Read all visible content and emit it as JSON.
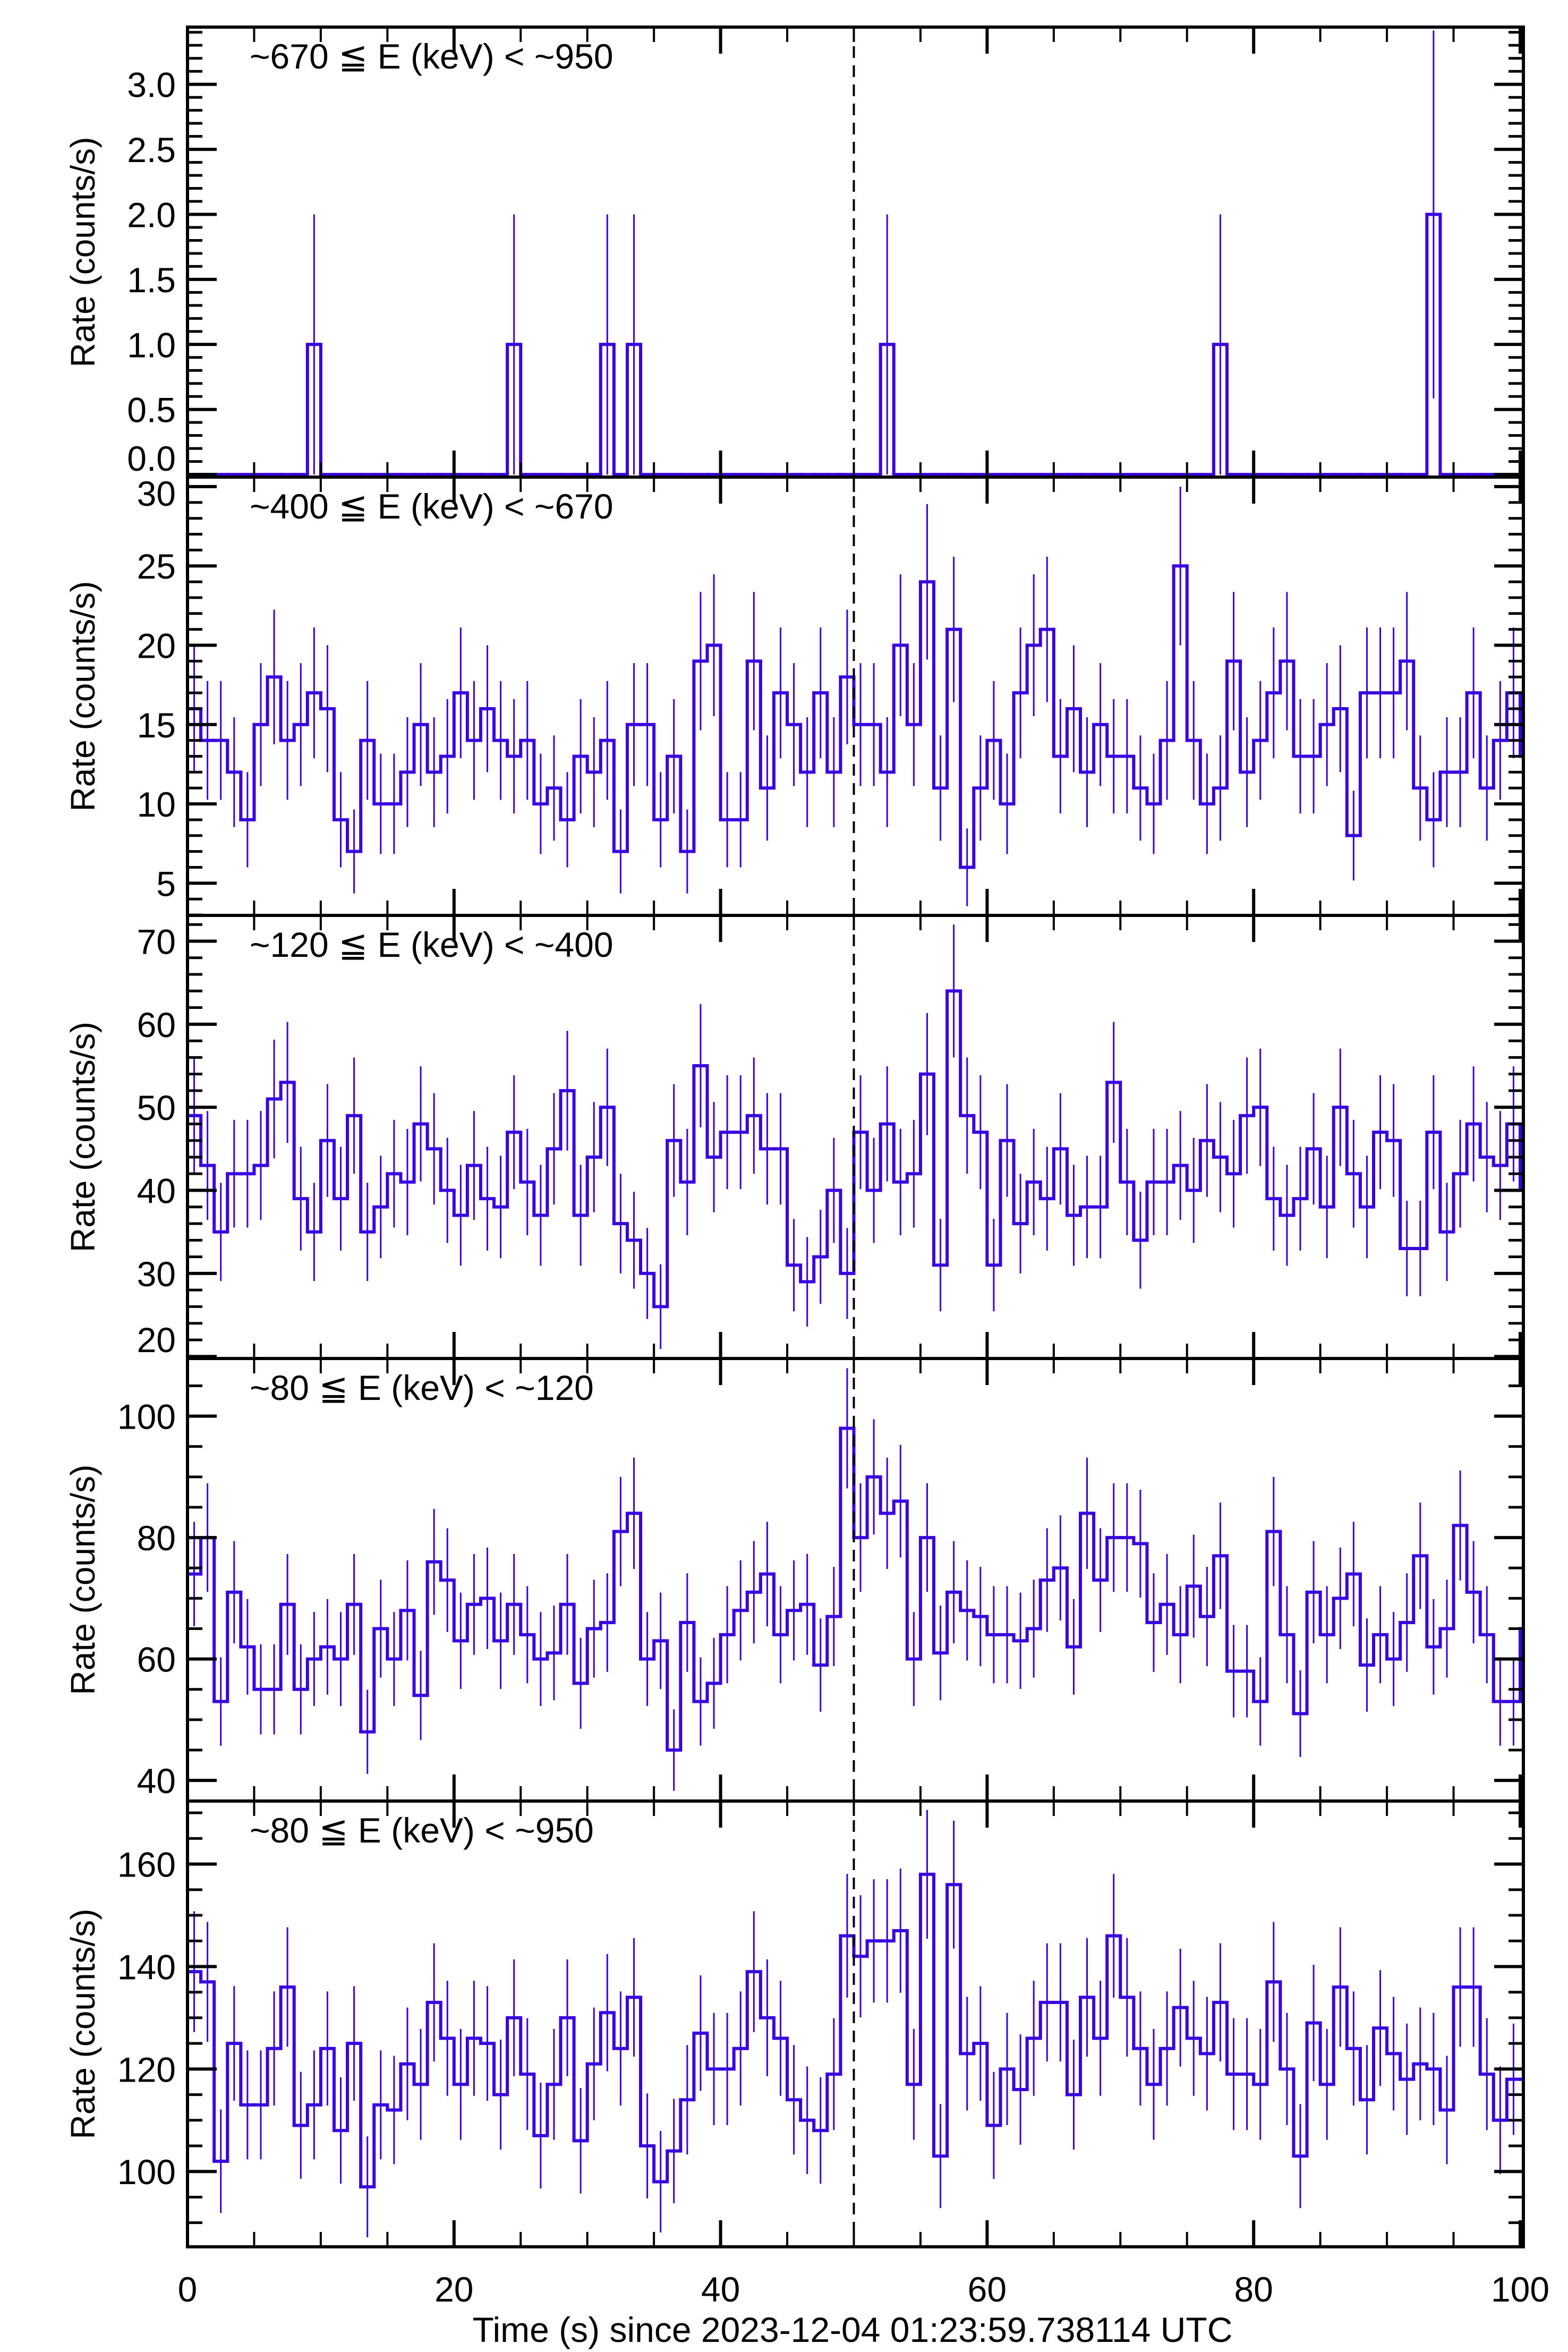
{
  "chart_data": {
    "type": "line",
    "style": "step histogram with error bars",
    "line_color": "#3a00e0",
    "axis_color": "#000000",
    "xlabel": "Time (s) since 2023-12-04 01:23:59.738114 UTC",
    "xlim": [
      0,
      100.24
    ],
    "xticks": [
      0,
      20,
      40,
      60,
      80,
      100
    ],
    "xticklabels": [
      "0",
      "20",
      "40",
      "60",
      "80",
      "100"
    ],
    "bin_width": 1,
    "x": [
      0,
      1,
      2,
      3,
      4,
      5,
      6,
      7,
      8,
      9,
      10,
      11,
      12,
      13,
      14,
      15,
      16,
      17,
      18,
      19,
      20,
      21,
      22,
      23,
      24,
      25,
      26,
      27,
      28,
      29,
      30,
      31,
      32,
      33,
      34,
      35,
      36,
      37,
      38,
      39,
      40,
      41,
      42,
      43,
      44,
      45,
      46,
      47,
      48,
      49,
      50,
      51,
      52,
      53,
      54,
      55,
      56,
      57,
      58,
      59,
      60,
      61,
      62,
      63,
      64,
      65,
      66,
      67,
      68,
      69,
      70,
      71,
      72,
      73,
      74,
      75,
      76,
      77,
      78,
      79,
      80,
      81,
      82,
      83,
      84,
      85,
      86,
      87,
      88,
      89,
      90,
      91,
      92,
      93,
      94,
      95,
      96,
      97,
      98,
      99,
      100
    ],
    "reference_line": {
      "x": 50,
      "style": "dashed"
    },
    "grid": false,
    "panels": [
      {
        "label": "~670 ≦ E (keV) < ~950",
        "ylabel": "Rate (counts/s)",
        "ylim": [
          -0.02,
          3.44
        ],
        "yticks": [
          0,
          0.5,
          1,
          1.5,
          2,
          2.5,
          3
        ],
        "yticklabels": [
          "0.0",
          "0.5",
          "1.0",
          "1.5",
          "2.0",
          "2.5",
          "3.0"
        ],
        "yminor": 0.1,
        "values": [
          0,
          0,
          0,
          0,
          0,
          0,
          0,
          0,
          0,
          1,
          0,
          0,
          0,
          0,
          0,
          0,
          0,
          0,
          0,
          0,
          0,
          0,
          0,
          0,
          1,
          0,
          0,
          0,
          0,
          0,
          0,
          1,
          0,
          1,
          0,
          0,
          0,
          0,
          0,
          0,
          0,
          0,
          0,
          0,
          0,
          0,
          0,
          0,
          0,
          0,
          0,
          0,
          1,
          0,
          0,
          0,
          0,
          0,
          0,
          0,
          0,
          0,
          0,
          0,
          0,
          0,
          0,
          0,
          0,
          0,
          0,
          0,
          0,
          0,
          0,
          0,
          0,
          1,
          0,
          0,
          0,
          0,
          0,
          0,
          0,
          0,
          0,
          0,
          0,
          0,
          0,
          0,
          0,
          2,
          0,
          0,
          0,
          0,
          0,
          0,
          0
        ]
      },
      {
        "label": "~400 ≦ E (keV) < ~670",
        "ylabel": "Rate (counts/s)",
        "ylim": [
          2.97,
          30.6
        ],
        "yticks": [
          5,
          10,
          15,
          20,
          25,
          30
        ],
        "yticklabels": [
          "5",
          "10",
          "15",
          "20",
          "25",
          "30"
        ],
        "yminor": 1,
        "values": [
          16,
          14,
          14,
          12,
          9,
          15,
          18,
          14,
          15,
          17,
          16,
          9,
          7,
          14,
          10,
          10,
          12,
          15,
          12,
          13,
          17,
          14,
          16,
          14,
          13,
          14,
          10,
          11,
          9,
          13,
          12,
          14,
          7,
          15,
          15,
          9,
          13,
          7,
          19,
          20,
          9,
          9,
          19,
          11,
          17,
          15,
          12,
          17,
          12,
          18,
          15,
          15,
          12,
          20,
          15,
          24,
          11,
          21,
          6,
          11,
          14,
          10,
          17,
          20,
          21,
          13,
          16,
          12,
          15,
          13,
          13,
          11,
          10,
          14,
          25,
          14,
          10,
          11,
          19,
          12,
          14,
          17,
          19,
          13,
          13,
          15,
          16,
          8,
          17,
          17,
          17,
          19,
          11,
          9,
          12,
          12,
          17,
          11,
          14,
          17,
          13
        ]
      },
      {
        "label": "~120 ≦ E (keV) < ~400",
        "ylabel": "Rate (counts/s)",
        "ylim": [
          19.76,
          73.1
        ],
        "yticks": [
          20,
          30,
          40,
          50,
          60,
          70
        ],
        "yticklabels": [
          "20",
          "30",
          "40",
          "50",
          "60",
          "70"
        ],
        "yminor": 2,
        "values": [
          49,
          43,
          35,
          42,
          42,
          43,
          51,
          53,
          39,
          35,
          46,
          39,
          49,
          35,
          38,
          42,
          41,
          48,
          45,
          40,
          37,
          43,
          39,
          38,
          47,
          41,
          37,
          45,
          52,
          37,
          44,
          50,
          36,
          34,
          30,
          26,
          46,
          41,
          55,
          44,
          47,
          47,
          49,
          45,
          45,
          31,
          29,
          32,
          40,
          30,
          47,
          40,
          48,
          41,
          42,
          54,
          31,
          64,
          49,
          47,
          31,
          46,
          36,
          41,
          39,
          45,
          37,
          38,
          38,
          53,
          41,
          34,
          41,
          41,
          43,
          40,
          46,
          44,
          42,
          49,
          50,
          39,
          37,
          39,
          45,
          38,
          50,
          42,
          38,
          47,
          46,
          33,
          33,
          47,
          35,
          42,
          48,
          44,
          43,
          48,
          40
        ]
      },
      {
        "label": "~80 ≦ E (keV) < ~120",
        "ylabel": "Rate (counts/s)",
        "ylim": [
          36.6,
          109.5
        ],
        "yticks": [
          40,
          60,
          80,
          100
        ],
        "yticklabels": [
          "40",
          "60",
          "80",
          "100"
        ],
        "yminor": 5,
        "values": [
          74,
          80,
          53,
          71,
          62,
          55,
          55,
          69,
          55,
          60,
          62,
          60,
          69,
          48,
          65,
          60,
          68,
          54,
          76,
          73,
          63,
          69,
          70,
          63,
          69,
          64,
          60,
          61,
          69,
          56,
          65,
          66,
          81,
          84,
          60,
          63,
          45,
          66,
          53,
          56,
          64,
          68,
          71,
          74,
          64,
          68,
          69,
          59,
          67,
          98,
          80,
          90,
          84,
          86,
          60,
          80,
          61,
          71,
          68,
          67,
          64,
          64,
          63,
          65,
          73,
          75,
          62,
          84,
          73,
          80,
          80,
          79,
          66,
          69,
          64,
          72,
          67,
          77,
          58,
          58,
          53,
          81,
          64,
          51,
          71,
          64,
          70,
          74,
          59,
          64,
          60,
          66,
          77,
          62,
          65,
          82,
          71,
          64,
          53,
          53,
          65
        ]
      },
      {
        "label": "~80 ≦ E (keV) < ~950",
        "ylabel": "Rate (counts/s)",
        "ylim": [
          85.3,
          172.3
        ],
        "yticks": [
          100,
          120,
          140,
          160
        ],
        "yticklabels": [
          "100",
          "120",
          "140",
          "160"
        ],
        "yminor": 5,
        "values": [
          139,
          137,
          102,
          125,
          113,
          113,
          124,
          136,
          109,
          113,
          124,
          108,
          125,
          97,
          113,
          112,
          121,
          117,
          133,
          126,
          117,
          126,
          125,
          115,
          130,
          119,
          107,
          117,
          130,
          106,
          121,
          131,
          124,
          134,
          105,
          98,
          104,
          114,
          127,
          120,
          120,
          124,
          139,
          130,
          126,
          114,
          110,
          108,
          119,
          146,
          142,
          145,
          145,
          147,
          117,
          158,
          103,
          156,
          123,
          125,
          109,
          120,
          116,
          126,
          133,
          133,
          115,
          134,
          126,
          146,
          134,
          124,
          117,
          124,
          132,
          126,
          123,
          133,
          119,
          119,
          117,
          137,
          120,
          103,
          129,
          117,
          136,
          124,
          114,
          128,
          123,
          118,
          121,
          120,
          112,
          136,
          136,
          119,
          110,
          118,
          118
        ]
      }
    ]
  }
}
